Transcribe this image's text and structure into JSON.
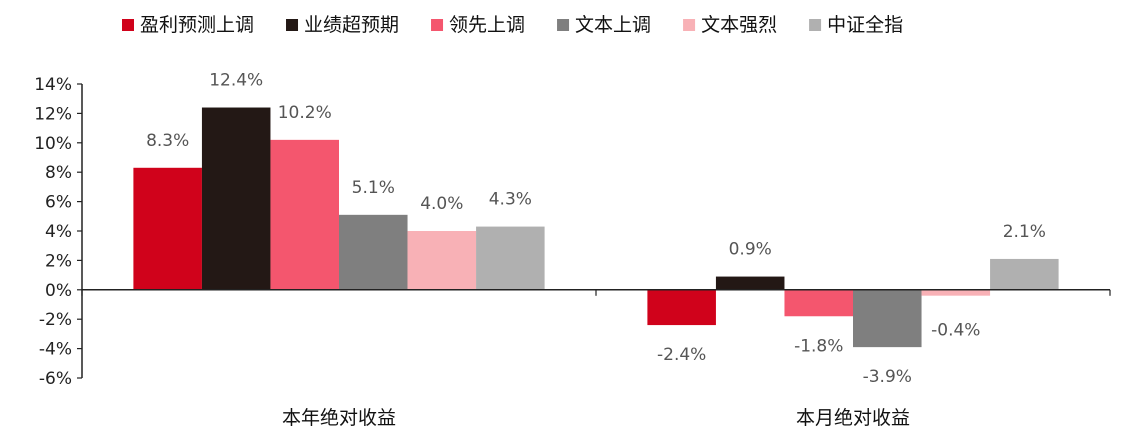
{
  "chart_data": {
    "type": "bar",
    "categories": [
      "本年绝对收益",
      "本月绝对收益"
    ],
    "series": [
      {
        "name": "盈利预测上调",
        "color": "#d0021b",
        "values": [
          8.3,
          -2.4
        ]
      },
      {
        "name": "业绩超预期",
        "color": "#231815",
        "values": [
          12.4,
          0.9
        ]
      },
      {
        "name": "领先上调",
        "color": "#f4566e",
        "values": [
          10.2,
          -1.8
        ]
      },
      {
        "name": "文本上调",
        "color": "#7f7f7f",
        "values": [
          5.1,
          -3.9
        ]
      },
      {
        "name": "文本强烈",
        "color": "#f8b1b6",
        "values": [
          4.0,
          -0.4
        ]
      },
      {
        "name": "中证全指",
        "color": "#b0b0b0",
        "values": [
          4.3,
          2.1
        ]
      }
    ],
    "data_labels": [
      [
        "8.3%",
        "-2.4%"
      ],
      [
        "12.4%",
        "0.9%"
      ],
      [
        "10.2%",
        "-1.8%"
      ],
      [
        "5.1%",
        "-3.9%"
      ],
      [
        "4.0%",
        "-0.4%"
      ],
      [
        "4.3%",
        "2.1%"
      ]
    ],
    "y_ticks": [
      14,
      12,
      10,
      8,
      6,
      4,
      2,
      0,
      -2,
      -4,
      -6
    ],
    "y_tick_labels": [
      "14%",
      "12%",
      "10%",
      "8%",
      "6%",
      "4%",
      "2%",
      "0%",
      "-2%",
      "-4%",
      "-6%"
    ],
    "ylim": [
      -6,
      14
    ],
    "legend_position": "top",
    "grid": false,
    "title": "",
    "xlabel": "",
    "ylabel": ""
  }
}
